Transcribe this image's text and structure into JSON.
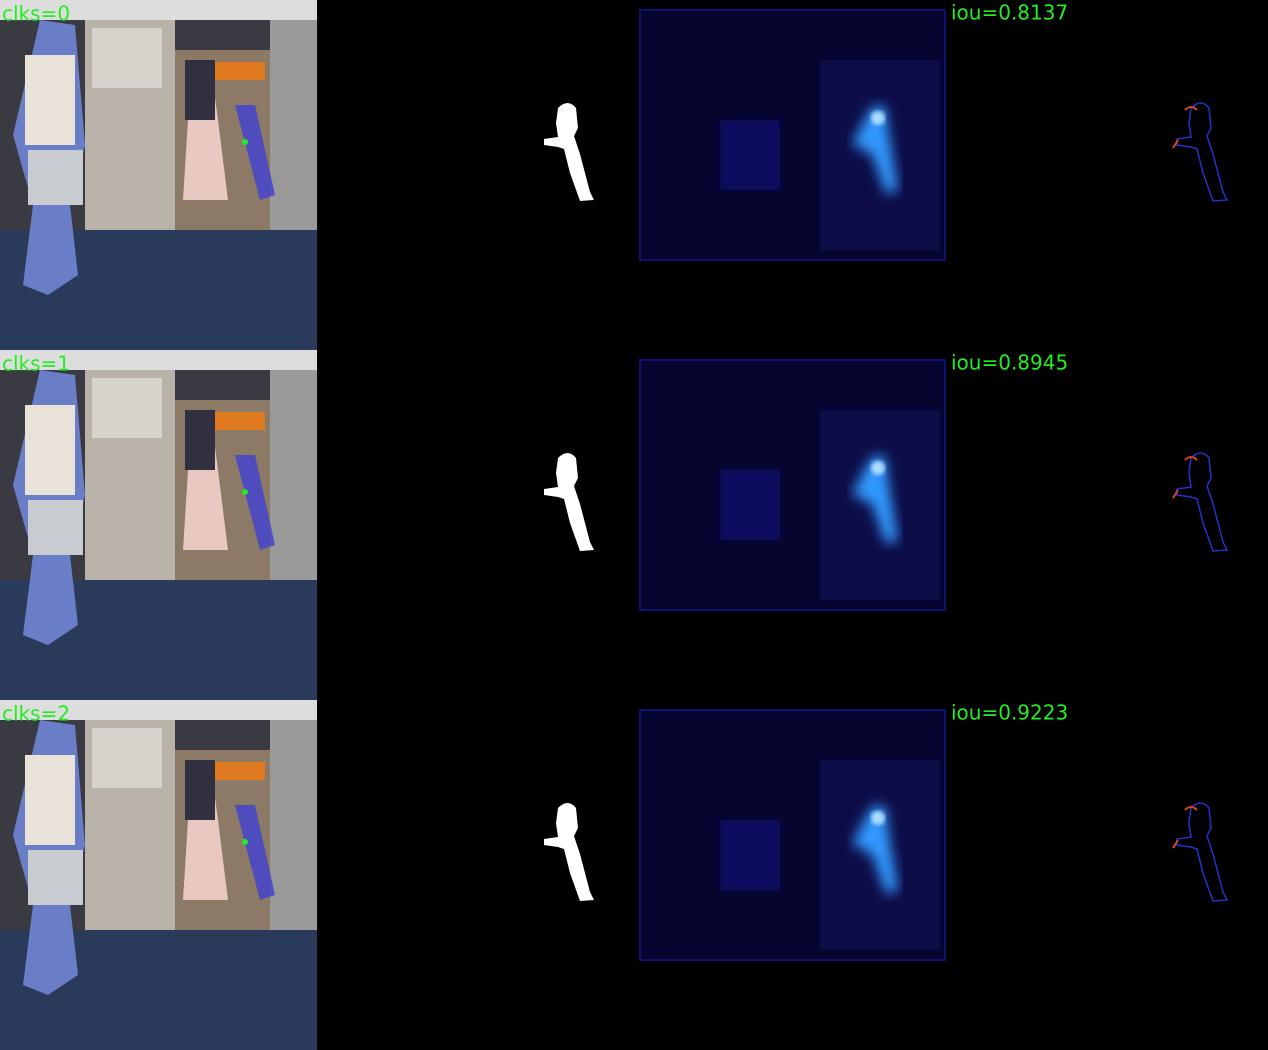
{
  "rows": [
    {
      "click_label": "clks=0",
      "iou_label": "iou=0.8137"
    },
    {
      "click_label": "clks=1",
      "iou_label": "iou=0.8945"
    },
    {
      "click_label": "clks=2",
      "iou_label": "iou=0.9223"
    }
  ]
}
